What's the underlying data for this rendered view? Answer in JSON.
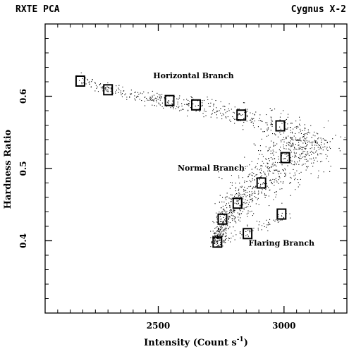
{
  "header": {
    "left": "RXTE PCA",
    "right": "Cygnus X-2"
  },
  "chart_data": {
    "type": "scatter",
    "xlabel": "Intensity (Count s",
    "xlabel_sup": "-1",
    "xlabel_close": ")",
    "ylabel": "Hardness Ratio",
    "xlim": [
      2050,
      3250
    ],
    "ylim": [
      0.3,
      0.7
    ],
    "x_ticks": [
      2500,
      3000
    ],
    "x_tick_labels": [
      "2500",
      "3000"
    ],
    "y_ticks": [
      0.4,
      0.5,
      0.6
    ],
    "y_tick_labels": [
      "0.4",
      "0.5",
      "0.6"
    ],
    "grid": false,
    "annotations": [
      {
        "text": "Horizontal Branch",
        "x": 2640,
        "y": 0.625
      },
      {
        "text": "Normal Branch",
        "x": 2710,
        "y": 0.497
      },
      {
        "text": "Flaring Branch",
        "x": 2990,
        "y": 0.393
      }
    ],
    "boxes": [
      {
        "x": 2190,
        "y": 0.621
      },
      {
        "x": 2300,
        "y": 0.609
      },
      {
        "x": 2545,
        "y": 0.594
      },
      {
        "x": 2650,
        "y": 0.588
      },
      {
        "x": 2830,
        "y": 0.574
      },
      {
        "x": 2985,
        "y": 0.559
      },
      {
        "x": 3005,
        "y": 0.515
      },
      {
        "x": 2910,
        "y": 0.48
      },
      {
        "x": 2815,
        "y": 0.452
      },
      {
        "x": 2755,
        "y": 0.43
      },
      {
        "x": 2855,
        "y": 0.41
      },
      {
        "x": 2990,
        "y": 0.437
      },
      {
        "x": 2735,
        "y": 0.398
      }
    ]
  }
}
